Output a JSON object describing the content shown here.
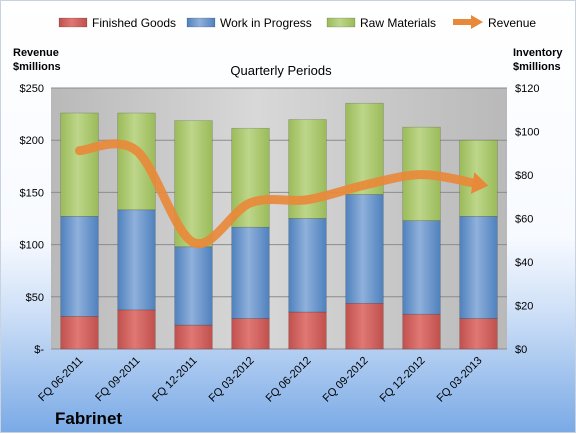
{
  "chart_data": {
    "type": "bar",
    "stacked": true,
    "title": "Quarterly Periods",
    "company": "Fabrinet",
    "left_axis_label": [
      "Revenue",
      "$millions"
    ],
    "right_axis_label": [
      "Inventory",
      "$millions"
    ],
    "categories": [
      "FQ 06-2011",
      "FQ 09-2011",
      "FQ 12-2011",
      "FQ 03-2012",
      "FQ 06-2012",
      "FQ 09-2012",
      "FQ 12-2012",
      "FQ 03-2013"
    ],
    "series": [
      {
        "name": "Finished Goods",
        "axis": "right",
        "color": "#c0504d",
        "values": [
          15,
          18,
          11,
          14,
          17,
          21,
          16,
          14
        ]
      },
      {
        "name": "Work in Progress",
        "axis": "right",
        "color": "#4f81bd",
        "values": [
          46,
          46,
          36,
          42,
          43,
          50,
          43,
          47
        ]
      },
      {
        "name": "Raw Materials",
        "axis": "right",
        "color": "#9bbb59",
        "values": [
          47.5,
          44.5,
          58,
          45.5,
          45.5,
          42,
          43,
          35
        ]
      }
    ],
    "line_series": {
      "name": "Revenue",
      "axis": "left",
      "color": "#e8893a",
      "values": [
        190,
        190,
        102,
        140,
        143,
        157,
        167,
        158
      ]
    },
    "left_axis": {
      "min": 0,
      "max": 250,
      "ticks": [
        "$-",
        "$50",
        "$100",
        "$150",
        "$200",
        "$250"
      ]
    },
    "right_axis": {
      "min": 0,
      "max": 120,
      "ticks": [
        "$0",
        "$20",
        "$40",
        "$60",
        "$80",
        "$100",
        "$120"
      ]
    },
    "legend_position": "top",
    "grid": true
  }
}
